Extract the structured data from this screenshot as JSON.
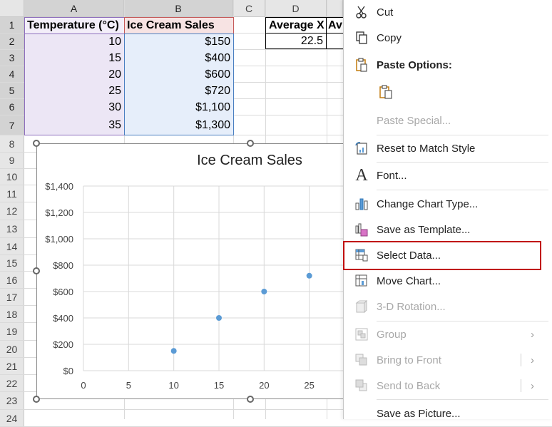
{
  "columns": [
    "A",
    "B",
    "C",
    "D"
  ],
  "rows": [
    "1",
    "2",
    "3",
    "4",
    "5",
    "6",
    "7",
    "8",
    "9",
    "10",
    "11",
    "12",
    "13",
    "14",
    "15",
    "16",
    "17",
    "18",
    "19",
    "20",
    "21",
    "22",
    "23",
    "24"
  ],
  "table": {
    "header_a": "Temperature (°C)",
    "header_b": "Ice Cream Sales",
    "temps": [
      "10",
      "15",
      "20",
      "25",
      "30",
      "35"
    ],
    "sales": [
      "$150",
      "$400",
      "$600",
      "$720",
      "$1,100",
      "$1,300"
    ]
  },
  "avg": {
    "header_d": "Average X",
    "header_e": "Av",
    "value_d": "22.5"
  },
  "chart_data": {
    "type": "scatter",
    "title": "Ice Cream Sales",
    "x": [
      10,
      15,
      20,
      25
    ],
    "y": [
      150,
      400,
      600,
      720
    ],
    "xlim": [
      0,
      30
    ],
    "ylim": [
      0,
      1400
    ],
    "xticks": [
      "0",
      "5",
      "10",
      "15",
      "20",
      "25"
    ],
    "yticks": [
      "$0",
      "$200",
      "$400",
      "$600",
      "$800",
      "$1,000",
      "$1,200",
      "$1,400"
    ],
    "grid": true,
    "point_color": "#5b9bd5"
  },
  "menu": {
    "cut": "Cut",
    "copy": "Copy",
    "paste_options": "Paste Options:",
    "paste_special": "Paste Special...",
    "reset": "Reset to Match Style",
    "font": "Font...",
    "change_chart_type": "Change Chart Type...",
    "save_template": "Save as Template...",
    "select_data": "Select Data...",
    "move_chart": "Move Chart...",
    "rotation": "3-D Rotation...",
    "group": "Group",
    "bring_front": "Bring to Front",
    "send_back": "Send to Back",
    "save_picture": "Save as Picture..."
  },
  "colors": {
    "highlight": "#c00000",
    "accent": "#5b9bd5"
  }
}
